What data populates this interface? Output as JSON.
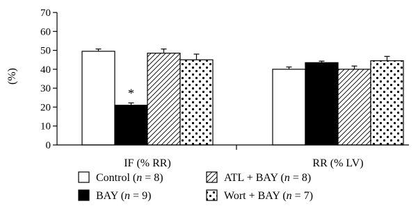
{
  "chart_data": {
    "type": "bar",
    "ylabel": "(%)",
    "ylim": [
      0,
      70
    ],
    "yticks": [
      "0",
      "10",
      "20",
      "30",
      "40",
      "50",
      "60",
      "70"
    ],
    "categories": [
      "IF (% RR)",
      "RR (% LV)"
    ],
    "legend_position": "bottom",
    "series": [
      {
        "legend": [
          "Control (",
          "n",
          " = 8)"
        ],
        "pattern": "white",
        "values": [
          49.5,
          40
        ],
        "errors": [
          1.2,
          1.2
        ]
      },
      {
        "legend": [
          "BAY (",
          "n",
          " = 9)"
        ],
        "pattern": "black",
        "values": [
          21,
          43.5
        ],
        "errors": [
          1.2,
          0.8
        ]
      },
      {
        "legend": [
          "ATL + BAY (",
          "n",
          " = 8)"
        ],
        "pattern": "hatch",
        "values": [
          48.5,
          40
        ],
        "errors": [
          2.2,
          1.7
        ]
      },
      {
        "legend": [
          "Wort + BAY (",
          "n",
          " = 7)"
        ],
        "pattern": "dots",
        "values": [
          45,
          44.5
        ],
        "errors": [
          3,
          2.3
        ]
      }
    ],
    "annotations": [
      {
        "text": "*",
        "series": 1,
        "category": 0
      }
    ]
  }
}
